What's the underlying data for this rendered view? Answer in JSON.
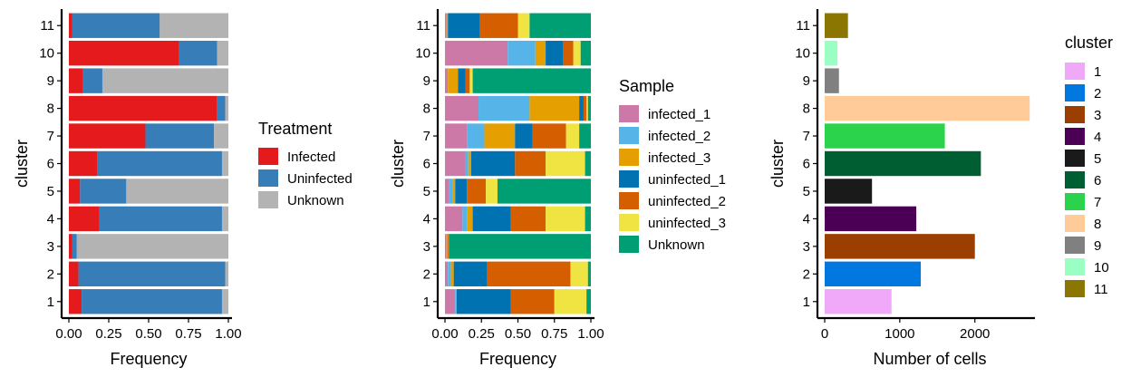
{
  "chart_data": [
    {
      "type": "bar",
      "orientation": "horizontal",
      "stacked": true,
      "categories": [
        "1",
        "2",
        "3",
        "4",
        "5",
        "6",
        "7",
        "8",
        "9",
        "10",
        "11"
      ],
      "series": [
        {
          "name": "Infected",
          "color": "#e41a1c",
          "values": [
            0.08,
            0.06,
            0.02,
            0.19,
            0.07,
            0.18,
            0.48,
            0.93,
            0.09,
            0.69,
            0.02
          ]
        },
        {
          "name": "Uninfected",
          "color": "#377eb8",
          "values": [
            0.88,
            0.92,
            0.03,
            0.77,
            0.29,
            0.78,
            0.43,
            0.05,
            0.12,
            0.24,
            0.55
          ]
        },
        {
          "name": "Unknown",
          "color": "#b3b3b3",
          "values": [
            0.04,
            0.02,
            0.95,
            0.04,
            0.64,
            0.04,
            0.09,
            0.02,
            0.79,
            0.07,
            0.43
          ]
        }
      ],
      "xlabel": "Frequency",
      "ylabel": "cluster",
      "xlim": [
        0,
        1
      ],
      "xticks": [
        "0.00",
        "0.25",
        "0.50",
        "0.75",
        "1.00"
      ],
      "legend_title": "Treatment",
      "legend_position": "right"
    },
    {
      "type": "bar",
      "orientation": "horizontal",
      "stacked": true,
      "categories": [
        "1",
        "2",
        "3",
        "4",
        "5",
        "6",
        "7",
        "8",
        "9",
        "10",
        "11"
      ],
      "series": [
        {
          "name": "infected_1",
          "color": "#cc79a7",
          "values": [
            0.07,
            0.02,
            0.01,
            0.12,
            0.03,
            0.14,
            0.15,
            0.23,
            0.02,
            0.43,
            0.01
          ]
        },
        {
          "name": "infected_2",
          "color": "#56b4e9",
          "values": [
            0.01,
            0.02,
            0.0,
            0.03,
            0.02,
            0.02,
            0.12,
            0.35,
            0.0,
            0.19,
            0.0
          ]
        },
        {
          "name": "infected_3",
          "color": "#e69f00",
          "values": [
            0.0,
            0.02,
            0.01,
            0.04,
            0.02,
            0.02,
            0.21,
            0.34,
            0.07,
            0.07,
            0.01
          ]
        },
        {
          "name": "uninfected_1",
          "color": "#0072b2",
          "values": [
            0.37,
            0.23,
            0.0,
            0.26,
            0.08,
            0.3,
            0.12,
            0.03,
            0.05,
            0.12,
            0.22
          ]
        },
        {
          "name": "uninfected_2",
          "color": "#d55e00",
          "values": [
            0.3,
            0.57,
            0.01,
            0.24,
            0.13,
            0.21,
            0.23,
            0.02,
            0.03,
            0.07,
            0.26
          ]
        },
        {
          "name": "uninfected_3",
          "color": "#f0e442",
          "values": [
            0.22,
            0.12,
            0.0,
            0.27,
            0.08,
            0.27,
            0.09,
            0.01,
            0.02,
            0.05,
            0.08
          ]
        },
        {
          "name": "Unknown",
          "color": "#009e73",
          "values": [
            0.03,
            0.02,
            0.97,
            0.04,
            0.64,
            0.04,
            0.08,
            0.02,
            0.81,
            0.07,
            0.42
          ]
        }
      ],
      "xlabel": "Frequency",
      "ylabel": "cluster",
      "xlim": [
        0,
        1
      ],
      "xticks": [
        "0.00",
        "0.25",
        "0.50",
        "0.75",
        "1.00"
      ],
      "legend_title": "Sample",
      "legend_position": "right"
    },
    {
      "type": "bar",
      "orientation": "horizontal",
      "stacked": false,
      "categories": [
        "1",
        "2",
        "3",
        "4",
        "5",
        "6",
        "7",
        "8",
        "9",
        "10",
        "11"
      ],
      "values": [
        890,
        1280,
        2000,
        1220,
        630,
        2080,
        1600,
        2730,
        190,
        170,
        310
      ],
      "colors": [
        "#f0a8f8",
        "#0078df",
        "#9a3f00",
        "#4b0055",
        "#1a1a1a",
        "#005f32",
        "#2bd24b",
        "#ffcb99",
        "#808080",
        "#99ffc2",
        "#8a7600"
      ],
      "xlabel": "Number of cells",
      "ylabel": "cluster",
      "xlim": [
        0,
        2800
      ],
      "xticks": [
        "0",
        "1000",
        "2000"
      ],
      "legend_title": "cluster",
      "legend_position": "right"
    }
  ]
}
